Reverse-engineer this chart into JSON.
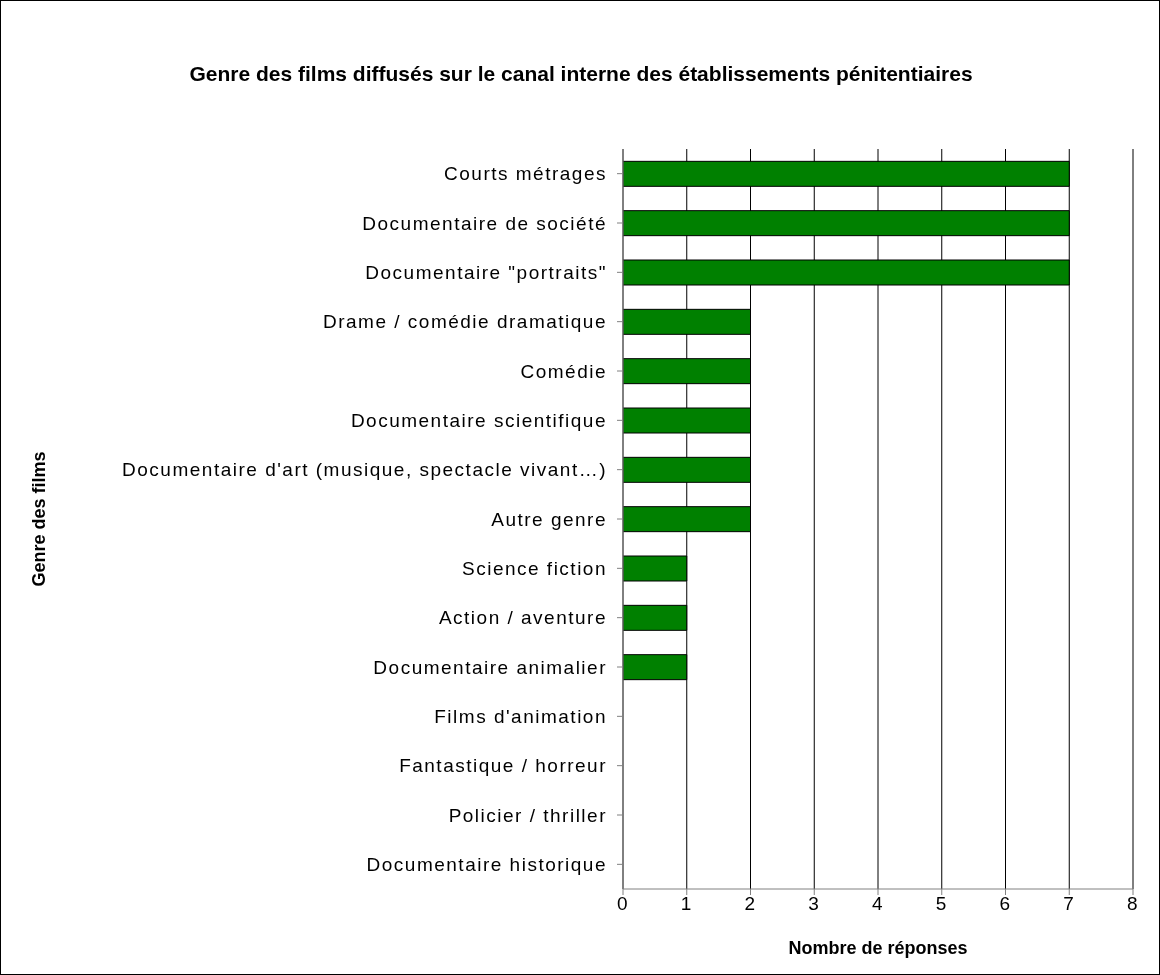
{
  "chart_data": {
    "type": "bar",
    "orientation": "horizontal",
    "title": "Genre des films diffusés sur le canal interne des établissements pénitentiaires",
    "xlabel": "Nombre de réponses",
    "ylabel": "Genre des films",
    "categories": [
      "Courts métrages",
      "Documentaire  de société",
      "Documentaire \"portraits\"",
      "Drame / comédie dramatique",
      "Comédie",
      "Documentaire  scientifique",
      "Documentaire d'art (musique, spectacle vivant…)",
      "Autre genre",
      "Science fiction",
      "Action / aventure",
      "Documentaire animalier",
      "Films d'animation",
      "Fantastique / horreur",
      "Policier / thriller",
      "Documentaire historique"
    ],
    "values": [
      7,
      7,
      7,
      2,
      2,
      2,
      2,
      2,
      1,
      1,
      1,
      0,
      0,
      0,
      0
    ],
    "color": "#008000",
    "xlim": [
      0,
      8
    ],
    "xticks": [
      0,
      1,
      2,
      3,
      4,
      5,
      6,
      7,
      8
    ],
    "grid": "x"
  }
}
